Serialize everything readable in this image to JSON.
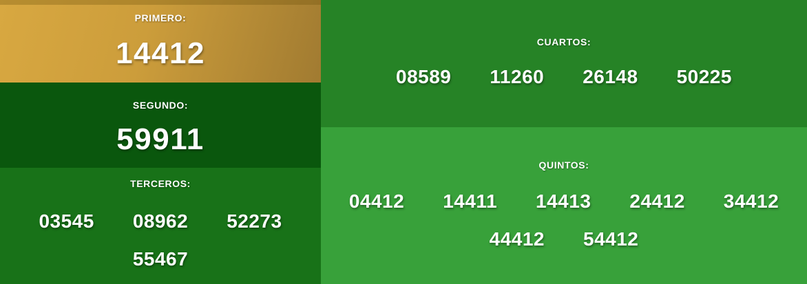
{
  "sections": {
    "primero": {
      "label": "PRIMERO:",
      "number": "14412"
    },
    "segundo": {
      "label": "SEGUNDO:",
      "number": "59911"
    },
    "terceros": {
      "label": "TERCEROS:",
      "numbers": [
        "03545",
        "08962",
        "52273",
        "55467"
      ]
    },
    "cuartos": {
      "label": "CUARTOS:",
      "numbers": [
        "08589",
        "11260",
        "26148",
        "50225"
      ]
    },
    "quintos": {
      "label": "QUINTOS:",
      "numbers": [
        "04412",
        "14411",
        "14413",
        "24412",
        "34412",
        "44412",
        "54412"
      ]
    }
  },
  "colors": {
    "gold_start": "#d8a841",
    "gold_mid": "#cc9d3b",
    "gold_end": "#a17b31",
    "segundo_bg": "#0a570d",
    "terceros_bg": "#187218",
    "cuartos_bg": "#268326",
    "quintos_bg": "#38a13a",
    "text_color": "#ffffff"
  }
}
